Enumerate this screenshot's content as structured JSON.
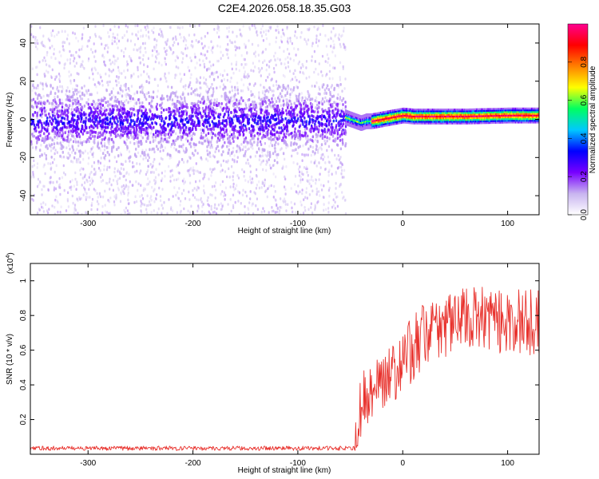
{
  "title": "C2E4.2026.058.18.35.G03",
  "chart_data": [
    {
      "type": "heatmap",
      "xlabel": "Height of straight line (km)",
      "ylabel": "Frequency (Hz)",
      "xlim": [
        -355,
        130
      ],
      "ylim": [
        -50,
        50
      ],
      "x_ticks": [
        -300,
        -200,
        -100,
        0,
        100
      ],
      "y_ticks": [
        -40,
        -20,
        0,
        20,
        40
      ],
      "colorbar": {
        "label": "Normalized spectral amplitude",
        "range": [
          0,
          1
        ],
        "ticks": [
          "0.0",
          "0.2",
          "0.4",
          "0.6",
          "0.8"
        ],
        "colors": [
          "#ffffff",
          "#c8b4f0",
          "#7800ff",
          "#0000ff",
          "#00c8ff",
          "#00ff60",
          "#ffff00",
          "#ff8000",
          "#ff0000",
          "#ff0090"
        ]
      },
      "regions": [
        {
          "x_range": [
            -355,
            -55
          ],
          "center_hz": 0,
          "core_halfwidth_hz": 8,
          "scatter_hz": [
            -50,
            50
          ],
          "amplitude": "0.2-0.35",
          "description": "noisy broadband"
        },
        {
          "x_range": [
            -55,
            130
          ],
          "center_hz": 1,
          "core_halfwidth_hz": 2,
          "amplitude": "0.5-1.0",
          "description": "narrow tone"
        }
      ],
      "ridge": {
        "x": [
          -55,
          -45,
          -40,
          -35,
          -30,
          -20,
          -10,
          0,
          10,
          30,
          60,
          100,
          130
        ],
        "y": [
          1,
          -1,
          -2,
          -1,
          -1,
          0,
          1,
          2,
          1.5,
          1.5,
          1.5,
          2,
          2
        ]
      }
    },
    {
      "type": "line",
      "xlabel": "Height of straight line (km)",
      "ylabel": "SNR (10 * v/v)",
      "y_scale_label": "(x10",
      "y_scale_exponent": "4",
      "xlim": [
        -355,
        130
      ],
      "ylim": [
        0,
        1.1
      ],
      "x_ticks": [
        -300,
        -200,
        -100,
        0,
        100
      ],
      "y_ticks": [
        0.2,
        0.4,
        0.6,
        0.8,
        1
      ],
      "color": "#e8322d",
      "trend": {
        "x": [
          -355,
          -45,
          -42,
          -38,
          -30,
          -20,
          -10,
          0,
          10,
          20,
          30,
          40,
          50,
          60,
          80,
          100,
          130
        ],
        "y": [
          0.03,
          0.03,
          0.18,
          0.25,
          0.32,
          0.38,
          0.42,
          0.48,
          0.58,
          0.64,
          0.69,
          0.71,
          0.73,
          0.74,
          0.74,
          0.73,
          0.72
        ]
      }
    }
  ]
}
